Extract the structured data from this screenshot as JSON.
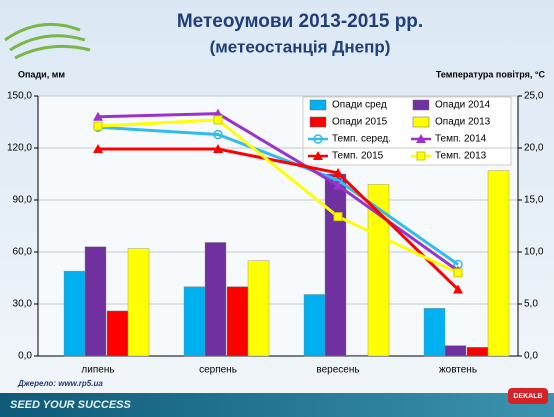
{
  "chart_data": {
    "type": "bar",
    "title": "Метеоумови 2013-2015 рр.",
    "subtitle": "(метеостанція Днепр)",
    "y_label": "Опади, мм",
    "y2_label": "Температура повітря, °С",
    "categories": [
      "липень",
      "серпень",
      "вересень",
      "жовтень"
    ],
    "ylim": [
      0,
      150
    ],
    "yticks": [
      {
        "value": 0,
        "label": "0,0"
      },
      {
        "value": 30,
        "label": "30,0"
      },
      {
        "value": 60,
        "label": "60,0"
      },
      {
        "value": 90,
        "label": "90,0"
      },
      {
        "value": 120,
        "label": "120,0"
      },
      {
        "value": 150,
        "label": "150,0"
      }
    ],
    "y2lim": [
      0,
      25
    ],
    "y2ticks": [
      {
        "value": 0,
        "label": "0,0"
      },
      {
        "value": 5,
        "label": "5,0"
      },
      {
        "value": 10,
        "label": "10,0"
      },
      {
        "value": 15,
        "label": "15,0"
      },
      {
        "value": 20,
        "label": "20,0"
      },
      {
        "value": 25,
        "label": "25,0"
      }
    ],
    "grid": true,
    "series": [
      {
        "name": "Опади сред",
        "type": "bar",
        "color": "#00b0f0",
        "values": [
          49,
          40,
          35.5,
          27.5
        ]
      },
      {
        "name": "Опади 2014",
        "type": "bar",
        "color": "#7030a0",
        "values": [
          63,
          65.5,
          105,
          6
        ]
      },
      {
        "name": "Опади 2015",
        "type": "bar",
        "color": "#ff0000",
        "values": [
          26,
          40,
          0.5,
          5
        ]
      },
      {
        "name": "Опади 2013",
        "type": "bar",
        "color": "#ffff00",
        "values": [
          62,
          55,
          99,
          107
        ]
      },
      {
        "name": "Темп. серед.",
        "type": "line",
        "axis": "y2",
        "marker": "circle",
        "color": "#33bbee",
        "values": [
          22,
          21.3,
          16.9,
          8.8
        ]
      },
      {
        "name": "Темп. 2014",
        "type": "line",
        "axis": "y2",
        "marker": "triangle",
        "color": "#9933cc",
        "values": [
          23,
          23.3,
          16.4,
          8.2
        ]
      },
      {
        "name": "Темп. 2015",
        "type": "line",
        "axis": "y2",
        "marker": "triangle",
        "color": "#ff0000",
        "values": [
          19.9,
          19.9,
          17.6,
          6.4
        ]
      },
      {
        "name": "Темп. 2013",
        "type": "line",
        "axis": "y2",
        "marker": "square",
        "color": "#ffff00",
        "values": [
          22.1,
          22.7,
          13.4,
          8
        ]
      }
    ]
  },
  "footer": {
    "source": "Джерело: www.rp5.ua",
    "slogan": "SEED YOUR SUCCESS",
    "brand": "DEKALB"
  }
}
